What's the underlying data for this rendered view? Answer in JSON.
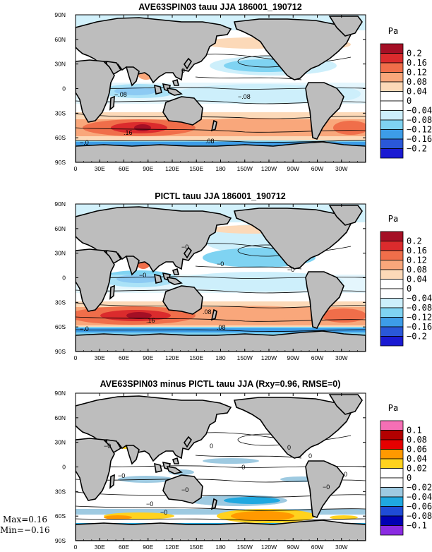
{
  "chart_data": [
    {
      "type": "filled-contour-map",
      "title": "AVE63SPIN03 tauu JJA 186001_190712",
      "variable": "tauu",
      "units": "Pa",
      "xticks": [
        "0",
        "30E",
        "60E",
        "90E",
        "120E",
        "150E",
        "180",
        "150W",
        "120W",
        "90W",
        "60W",
        "30W"
      ],
      "yticks": [
        "90N",
        "60N",
        "30N",
        "0",
        "30S",
        "60S",
        "90S"
      ],
      "colorbar": {
        "unit": "Pa",
        "labels": [
          "0.2",
          "0.16",
          "0.12",
          "0.08",
          "0.04",
          "0",
          "−0.04",
          "−0.08",
          "−0.12",
          "−0.16",
          "−0.2"
        ],
        "colors": [
          "#a50f25",
          "#db2b2d",
          "#f06e4a",
          "#f9a77b",
          "#fcd9b8",
          "#ffffff",
          "#ffffff",
          "#cdeffb",
          "#7fd3f2",
          "#3d9de8",
          "#2a58d8",
          "#1a1ad2"
        ]
      },
      "contour_labels": [
        "0",
        "−.08",
        "−.08",
        ".16",
        "−.0",
        ".08"
      ]
    },
    {
      "type": "filled-contour-map",
      "title": "PICTL tauu JJA 186001_190712",
      "variable": "tauu",
      "units": "Pa",
      "xticks": [
        "0",
        "30E",
        "60E",
        "90E",
        "120E",
        "150E",
        "180",
        "150W",
        "120W",
        "90W",
        "60W",
        "30W"
      ],
      "yticks": [
        "90N",
        "60N",
        "30N",
        "0",
        "30S",
        "60S",
        "90S"
      ],
      "colorbar": {
        "unit": "Pa",
        "labels": [
          "0.2",
          "0.16",
          "0.12",
          "0.08",
          "0.04",
          "0",
          "−0.04",
          "−0.08",
          "−0.12",
          "−0.16",
          "−0.2"
        ],
        "colors": [
          "#a50f25",
          "#db2b2d",
          "#f06e4a",
          "#f9a77b",
          "#fcd9b8",
          "#ffffff",
          "#ffffff",
          "#cdeffb",
          "#7fd3f2",
          "#3d9de8",
          "#2a58d8",
          "#1a1ad2"
        ]
      },
      "contour_labels": [
        "−0",
        "−0",
        "−0",
        "−0",
        ".16",
        ".08",
        "−.0",
        ".08"
      ]
    },
    {
      "type": "filled-contour-map",
      "title": "AVE63SPIN03 minus PICTL tauu JJA (Rxy=0.96, RMSE=0)",
      "variable": "tauu difference",
      "units": "Pa",
      "xticks": [
        "0",
        "30E",
        "60E",
        "90E",
        "120E",
        "150E",
        "180",
        "150W",
        "120W",
        "90W",
        "60W",
        "30W"
      ],
      "yticks": [
        "90N",
        "60N",
        "30N",
        "0",
        "30S",
        "60S",
        "90S"
      ],
      "colorbar": {
        "unit": "Pa",
        "labels": [
          "0.1",
          "0.08",
          "0.06",
          "0.04",
          "0.02",
          "0",
          "−0.02",
          "−0.04",
          "−0.06",
          "−0.08",
          "−0.1"
        ],
        "colors": [
          "#f56fb5",
          "#b30000",
          "#e60000",
          "#ff9900",
          "#ffd21e",
          "#ffffff",
          "#ffffff",
          "#9ecae1",
          "#1fa8e0",
          "#1f4cd6",
          "#0000b3",
          "#8a2be2"
        ]
      },
      "contour_labels": [
        "−0",
        "0",
        "0",
        "0",
        "−0",
        "−0",
        "−0",
        "−0",
        "0",
        "−0",
        "−0"
      ],
      "stats": {
        "max": "Max=0.16",
        "min": "Min=−0.16"
      },
      "stats_values": {
        "max": 0.16,
        "min": -0.16
      }
    }
  ]
}
